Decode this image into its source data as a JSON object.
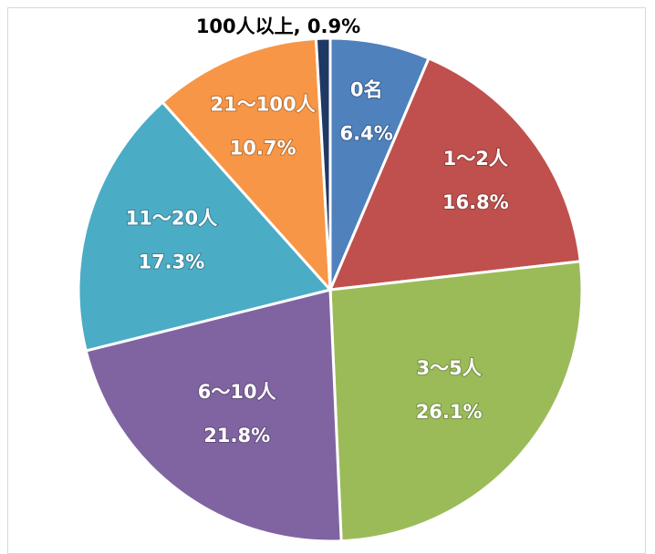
{
  "chart_data": {
    "type": "pie",
    "title": "",
    "slices": [
      {
        "label": "0名",
        "value": 6.4,
        "value_label": "6.4%",
        "color": "#4f81bd"
      },
      {
        "label": "1～2人",
        "value": 16.8,
        "value_label": "16.8%",
        "color": "#c0504d"
      },
      {
        "label": "3～5人",
        "value": 26.1,
        "value_label": "26.1%",
        "color": "#9bbb59"
      },
      {
        "label": "6～10人",
        "value": 21.8,
        "value_label": "21.8%",
        "color": "#8064a2"
      },
      {
        "label": "11～20人",
        "value": 17.3,
        "value_label": "17.3%",
        "color": "#4bacc6"
      },
      {
        "label": "21～100人",
        "value": 10.7,
        "value_label": "10.7%",
        "color": "#f79646"
      },
      {
        "label": "100人以上",
        "value": 0.9,
        "value_label": "0.9%",
        "color": "#1f3864",
        "outside_label": "100人以上, 0.9%"
      }
    ],
    "start": "top",
    "direction": "clockwise",
    "legend": "none"
  }
}
